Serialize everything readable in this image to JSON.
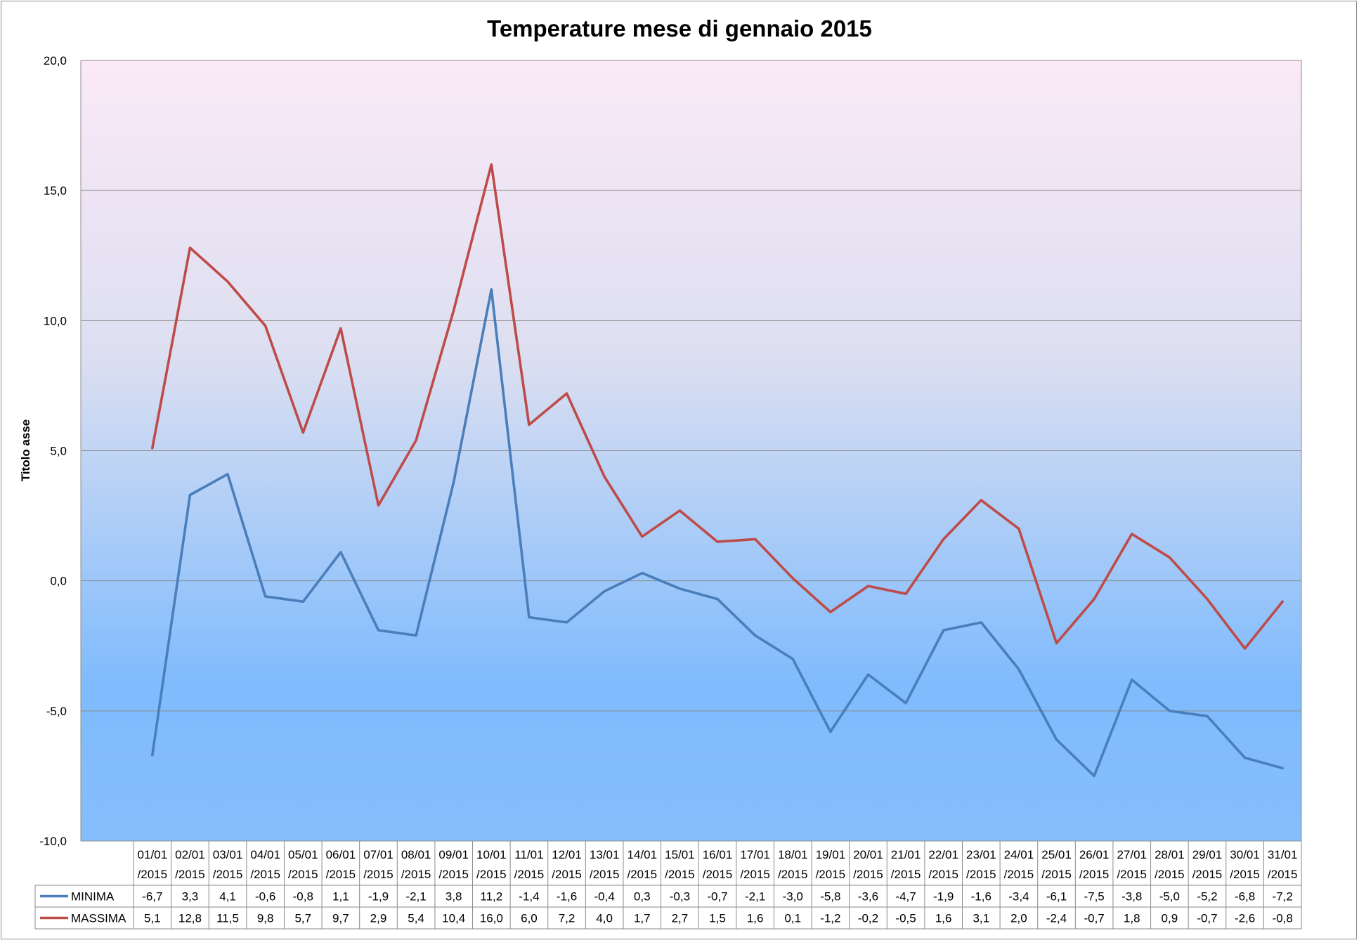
{
  "chart_data": {
    "type": "line",
    "title": "Temperature mese di gennaio 2015",
    "ylabel": "Titolo asse",
    "xlabel": "",
    "ylim": [
      -10,
      20
    ],
    "y_ticks": [
      "20,0",
      "15,0",
      "10,0",
      "5,0",
      "0,0",
      "-5,0",
      "-10,0"
    ],
    "y_tick_values": [
      20,
      15,
      10,
      5,
      0,
      -5,
      -10
    ],
    "grid": "horizontal",
    "legend": "data-table-bottom",
    "categories": [
      "01/01/2015",
      "02/01/2015",
      "03/01/2015",
      "04/01/2015",
      "05/01/2015",
      "06/01/2015",
      "07/01/2015",
      "08/01/2015",
      "09/01/2015",
      "10/01/2015",
      "11/01/2015",
      "12/01/2015",
      "13/01/2015",
      "14/01/2015",
      "15/01/2015",
      "16/01/2015",
      "17/01/2015",
      "18/01/2015",
      "19/01/2015",
      "20/01/2015",
      "21/01/2015",
      "22/01/2015",
      "23/01/2015",
      "24/01/2015",
      "25/01/2015",
      "26/01/2015",
      "27/01/2015",
      "28/01/2015",
      "29/01/2015",
      "30/01/2015",
      "31/01/2015"
    ],
    "category_lines": [
      [
        "01/01",
        "/2015"
      ],
      [
        "02/01",
        "/2015"
      ],
      [
        "03/01",
        "/2015"
      ],
      [
        "04/01",
        "/2015"
      ],
      [
        "05/01",
        "/2015"
      ],
      [
        "06/01",
        "/2015"
      ],
      [
        "07/01",
        "/2015"
      ],
      [
        "08/01",
        "/2015"
      ],
      [
        "09/01",
        "/2015"
      ],
      [
        "10/01",
        "/2015"
      ],
      [
        "11/01",
        "/2015"
      ],
      [
        "12/01",
        "/2015"
      ],
      [
        "13/01",
        "/2015"
      ],
      [
        "14/01",
        "/2015"
      ],
      [
        "15/01",
        "/2015"
      ],
      [
        "16/01",
        "/2015"
      ],
      [
        "17/01",
        "/2015"
      ],
      [
        "18/01",
        "/2015"
      ],
      [
        "19/01",
        "/2015"
      ],
      [
        "20/01",
        "/2015"
      ],
      [
        "21/01",
        "/2015"
      ],
      [
        "22/01",
        "/2015"
      ],
      [
        "23/01",
        "/2015"
      ],
      [
        "24/01",
        "/2015"
      ],
      [
        "25/01",
        "/2015"
      ],
      [
        "26/01",
        "/2015"
      ],
      [
        "27/01",
        "/2015"
      ],
      [
        "28/01",
        "/2015"
      ],
      [
        "29/01",
        "/2015"
      ],
      [
        "30/01",
        "/2015"
      ],
      [
        "31/01",
        "/2015"
      ]
    ],
    "series": [
      {
        "name": "MINIMA",
        "color": "#4a7ebb",
        "values": [
          -6.7,
          3.3,
          4.1,
          -0.6,
          -0.8,
          1.1,
          -1.9,
          -2.1,
          3.8,
          11.2,
          -1.4,
          -1.6,
          -0.4,
          0.3,
          -0.3,
          -0.7,
          -2.1,
          -3.0,
          -5.8,
          -3.6,
          -4.7,
          -1.9,
          -1.6,
          -3.4,
          -6.1,
          -7.5,
          -3.8,
          -5.0,
          -5.2,
          -6.8,
          -7.2
        ],
        "labels": [
          "-6,7",
          "3,3",
          "4,1",
          "-0,6",
          "-0,8",
          "1,1",
          "-1,9",
          "-2,1",
          "3,8",
          "11,2",
          "-1,4",
          "-1,6",
          "-0,4",
          "0,3",
          "-0,3",
          "-0,7",
          "-2,1",
          "-3,0",
          "-5,8",
          "-3,6",
          "-4,7",
          "-1,9",
          "-1,6",
          "-3,4",
          "-6,1",
          "-7,5",
          "-3,8",
          "-5,0",
          "-5,2",
          "-6,8",
          "-7,2"
        ]
      },
      {
        "name": "MASSIMA",
        "color": "#be4b48",
        "values": [
          5.1,
          12.8,
          11.5,
          9.8,
          5.7,
          9.7,
          2.9,
          5.4,
          10.4,
          16.0,
          6.0,
          7.2,
          4.0,
          1.7,
          2.7,
          1.5,
          1.6,
          0.1,
          -1.2,
          -0.2,
          -0.5,
          1.6,
          3.1,
          2.0,
          -2.4,
          -0.7,
          1.8,
          0.9,
          -0.7,
          -2.6,
          -0.8
        ],
        "labels": [
          "5,1",
          "12,8",
          "11,5",
          "9,8",
          "5,7",
          "9,7",
          "2,9",
          "5,4",
          "10,4",
          "16,0",
          "6,0",
          "7,2",
          "4,0",
          "1,7",
          "2,7",
          "1,5",
          "1,6",
          "0,1",
          "-1,2",
          "-0,2",
          "-0,5",
          "1,6",
          "3,1",
          "2,0",
          "-2,4",
          "-0,7",
          "1,8",
          "0,9",
          "-0,7",
          "-2,6",
          "-0,8"
        ]
      }
    ],
    "plot_background": {
      "top": "#fbe9f7",
      "upper": "#dcdff1",
      "lower": "#7fbbfd"
    }
  }
}
